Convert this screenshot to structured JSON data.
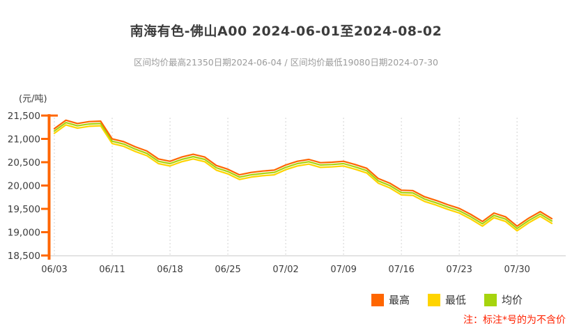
{
  "header": {
    "title": "南海有色-佛山A00 2024-06-01至2024-08-02",
    "subtitle": "区间均价最高21350日期2024-06-04 / 区间均价最低19080日期2024-07-30"
  },
  "chart_data": {
    "type": "line",
    "title": "南海有色-佛山A00 2024-06-01至2024-08-02",
    "ylabel": "(元/吨)",
    "ylim": [
      18500,
      21500
    ],
    "yticks": [
      21500,
      21000,
      20500,
      20000,
      19500,
      19000,
      18500
    ],
    "grid": "vertical-dashed",
    "legend_position": "bottom",
    "x": [
      "06/03",
      "06/04",
      "06/05",
      "06/06",
      "06/07",
      "06/11",
      "06/12",
      "06/13",
      "06/14",
      "06/17",
      "06/18",
      "06/19",
      "06/20",
      "06/21",
      "06/24",
      "06/25",
      "06/26",
      "06/27",
      "06/28",
      "07/01",
      "07/02",
      "07/03",
      "07/04",
      "07/05",
      "07/08",
      "07/09",
      "07/10",
      "07/11",
      "07/12",
      "07/15",
      "07/16",
      "07/17",
      "07/18",
      "07/19",
      "07/22",
      "07/23",
      "07/24",
      "07/25",
      "07/26",
      "07/29",
      "07/30",
      "07/31",
      "08/01",
      "08/02"
    ],
    "xticks": [
      "06/03",
      "06/11",
      "06/18",
      "06/25",
      "07/02",
      "07/09",
      "07/16",
      "07/23",
      "07/30"
    ],
    "series": [
      {
        "key": "high",
        "name": "最高",
        "color": "#ff6600",
        "values": [
          21220,
          21400,
          21330,
          21370,
          21380,
          21000,
          20940,
          20830,
          20740,
          20570,
          20520,
          20610,
          20670,
          20610,
          20430,
          20350,
          20230,
          20280,
          20310,
          20330,
          20440,
          20520,
          20560,
          20490,
          20500,
          20520,
          20450,
          20370,
          20150,
          20050,
          19900,
          19890,
          19760,
          19680,
          19590,
          19510,
          19380,
          19230,
          19410,
          19330,
          19130,
          19300,
          19440,
          19290
        ]
      },
      {
        "key": "low",
        "name": "最低",
        "color": "#ffd400",
        "values": [
          21120,
          21300,
          21230,
          21270,
          21280,
          20900,
          20840,
          20730,
          20640,
          20470,
          20420,
          20510,
          20570,
          20510,
          20330,
          20250,
          20130,
          20180,
          20210,
          20230,
          20340,
          20420,
          20460,
          20390,
          20400,
          20420,
          20350,
          20270,
          20050,
          19950,
          19800,
          19790,
          19660,
          19580,
          19490,
          19410,
          19280,
          19130,
          19310,
          19230,
          19030,
          19200,
          19340,
          19190
        ]
      },
      {
        "key": "avg",
        "name": "均价",
        "color": "#a6d40e",
        "values": [
          21170,
          21350,
          21280,
          21320,
          21330,
          20950,
          20890,
          20780,
          20690,
          20520,
          20470,
          20560,
          20620,
          20560,
          20380,
          20300,
          20180,
          20230,
          20260,
          20280,
          20390,
          20470,
          20510,
          20440,
          20450,
          20470,
          20400,
          20320,
          20100,
          20000,
          19850,
          19840,
          19710,
          19630,
          19540,
          19460,
          19330,
          19180,
          19360,
          19280,
          19080,
          19250,
          19390,
          19240
        ]
      }
    ],
    "stats": {
      "avg_max": 21350,
      "avg_max_date": "2024-06-04",
      "avg_min": 19080,
      "avg_min_date": "2024-07-30"
    },
    "axis_color": "#ff6600"
  },
  "legend": {
    "items": [
      {
        "label": "最高",
        "color": "#ff6600"
      },
      {
        "label": "最低",
        "color": "#ffd400"
      },
      {
        "label": "均价",
        "color": "#a6d40e"
      }
    ]
  },
  "footnote": {
    "text": "注：标注*号的为不含价",
    "color": "#ff2200"
  }
}
